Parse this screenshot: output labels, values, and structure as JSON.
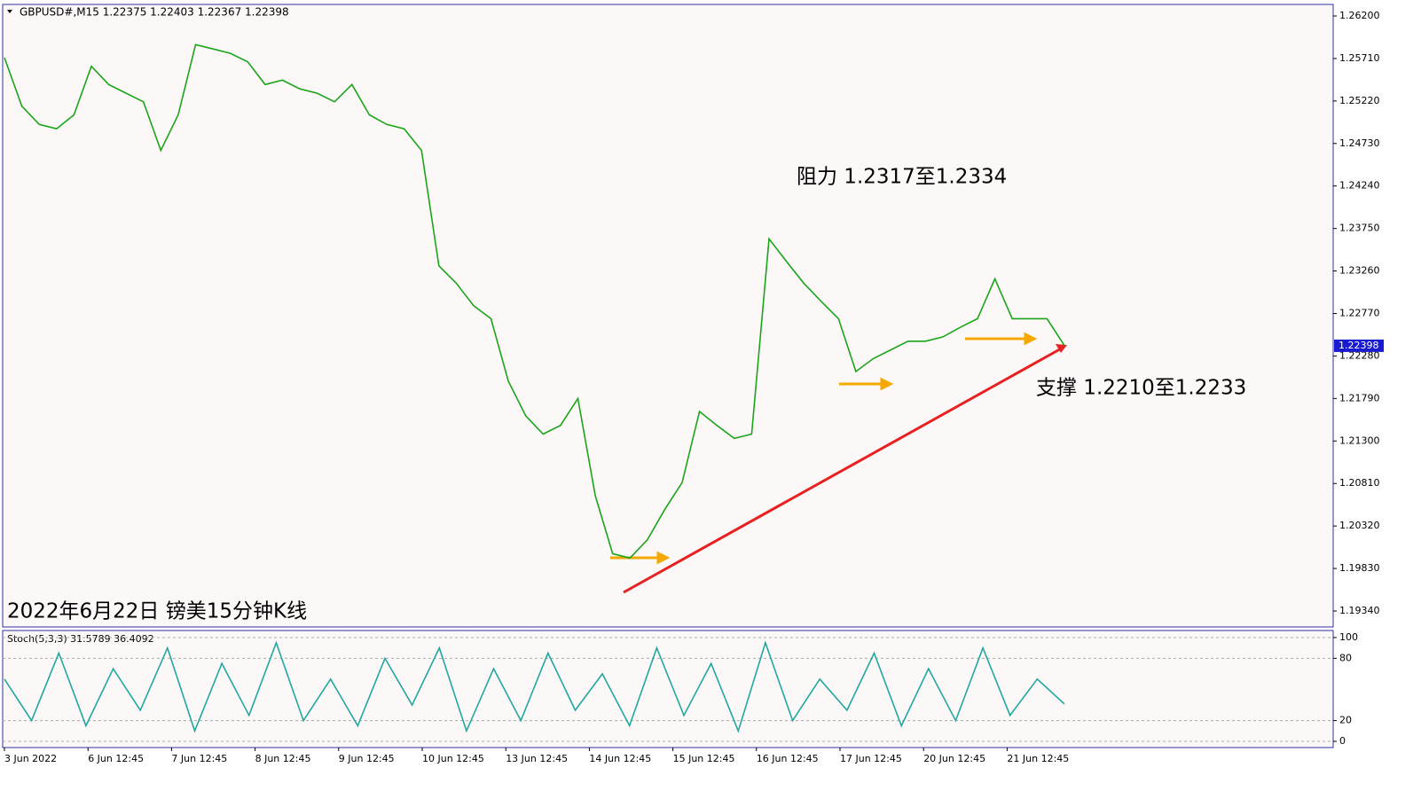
{
  "header": "GBPUSD#,M15  1.22375 1.22403 1.22367 1.22398",
  "chart_data": [
    {
      "type": "line",
      "annotations": [
        "阻力 1.2317至1.2334",
        "支撑 1.2210至1.2233",
        "2022年6月22日 镑美15分钟K线"
      ],
      "values": [
        1.2572,
        1.2516,
        1.2495,
        1.249,
        1.2506,
        1.2562,
        1.2541,
        1.2531,
        1.2521,
        1.2465,
        1.2506,
        1.2587,
        1.2582,
        1.2577,
        1.2567,
        1.2541,
        1.2546,
        1.2536,
        1.2531,
        1.2521,
        1.2541,
        1.2506,
        1.2495,
        1.249,
        1.2465,
        1.2332,
        1.2312,
        1.2286,
        1.2271,
        1.2199,
        1.2159,
        1.2138,
        1.2148,
        1.2179,
        1.2067,
        1.2,
        1.1995,
        1.2016,
        1.2051,
        1.2082,
        1.2164,
        1.2148,
        1.2133,
        1.2138,
        1.2363,
        1.2337,
        1.2312,
        1.2291,
        1.2271,
        1.221,
        1.2225,
        1.2235,
        1.2245,
        1.2245,
        1.225,
        1.2261,
        1.2271,
        1.2317,
        1.2271,
        1.2271,
        1.2271,
        1.224
      ],
      "color": "#1aa51a",
      "last_price": {
        "value": 1.22398,
        "label": "1.22398"
      },
      "ylim": [
        1.26333,
        1.19156
      ],
      "yticks": [
        {
          "value": 1.262,
          "label": "1.26200"
        },
        {
          "value": 1.2571,
          "label": "1.25710"
        },
        {
          "value": 1.2522,
          "label": "1.25220"
        },
        {
          "value": 1.2473,
          "label": "1.24730"
        },
        {
          "value": 1.2424,
          "label": "1.24240"
        },
        {
          "value": 1.2375,
          "label": "1.23750"
        },
        {
          "value": 1.2326,
          "label": "1.23260"
        },
        {
          "value": 1.2277,
          "label": "1.22770"
        },
        {
          "value": 1.2228,
          "label": "1.22280"
        },
        {
          "value": 1.2179,
          "label": "1.21790"
        },
        {
          "value": 1.213,
          "label": "1.21300"
        },
        {
          "value": 1.2081,
          "label": "1.20810"
        },
        {
          "value": 1.2032,
          "label": "1.20320"
        },
        {
          "value": 1.1983,
          "label": "1.19830"
        },
        {
          "value": 1.1934,
          "label": "1.19340"
        }
      ]
    },
    {
      "type": "line",
      "title": "Stoch(5,3,3) 31.5789 36.4092",
      "values": [
        60,
        20,
        85,
        15,
        70,
        30,
        90,
        10,
        75,
        25,
        95,
        20,
        60,
        15,
        80,
        35,
        90,
        10,
        70,
        20,
        85,
        30,
        65,
        15,
        90,
        25,
        75,
        10,
        95,
        20,
        60,
        30,
        85,
        15,
        70,
        20,
        90,
        25,
        60,
        36
      ],
      "color": "#20a8a0",
      "ylim": [
        106.8,
        -6
      ],
      "yticks": [
        0,
        20,
        80,
        100
      ],
      "xtick_labels": [
        "3 Jun 2022",
        "6 Jun 12:45",
        "7 Jun 12:45",
        "8 Jun 12:45",
        "9 Jun 12:45",
        "10 Jun 12:45",
        "13 Jun 12:45",
        "14 Jun 12:45",
        "15 Jun 12:45",
        "16 Jun 12:45",
        "17 Jun 12:45",
        "20 Jun 12:45",
        "21 Jun 12:45"
      ]
    }
  ]
}
